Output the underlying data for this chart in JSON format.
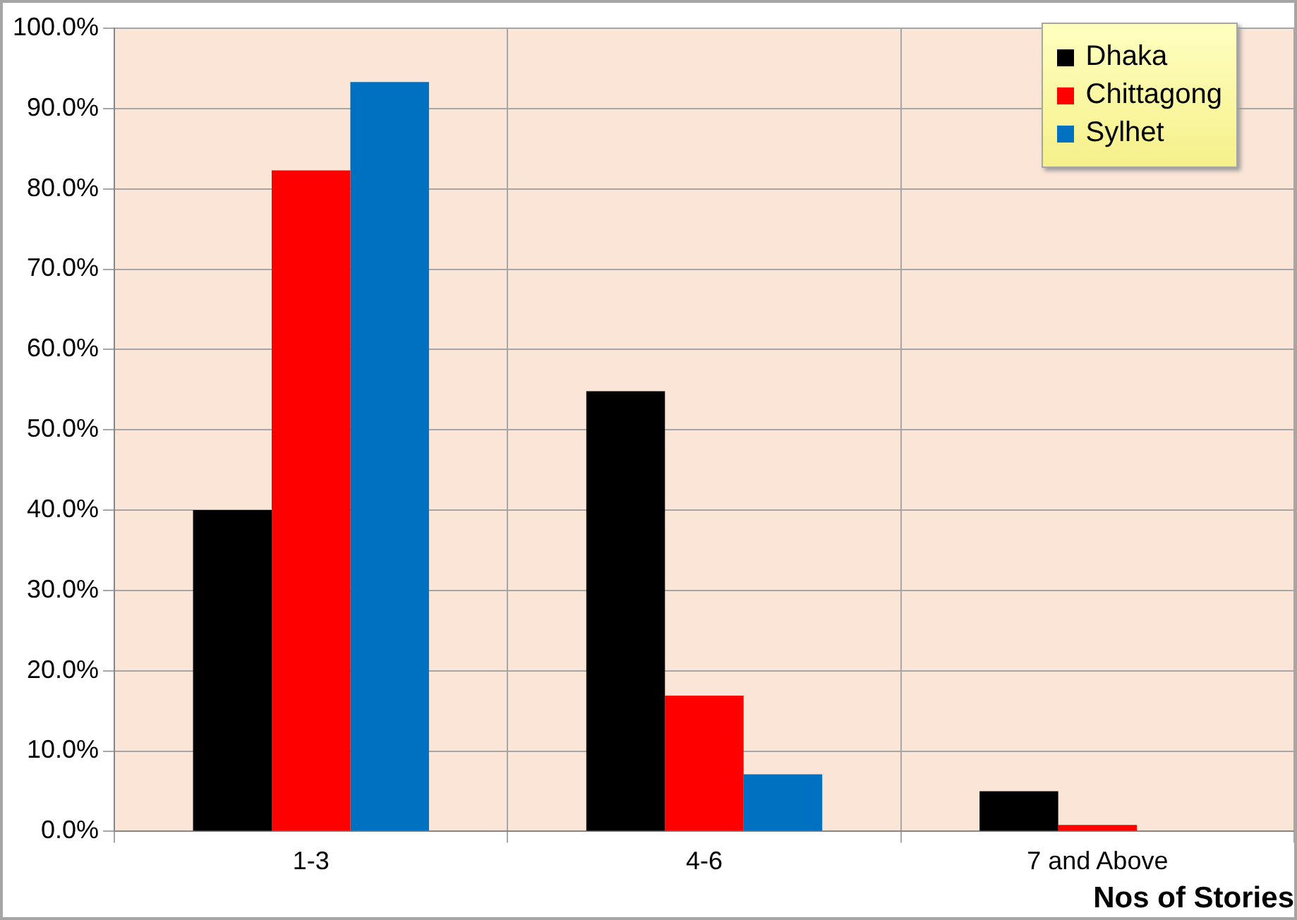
{
  "chart_data": {
    "type": "bar",
    "xlabel": "Nos of Stories",
    "categories": [
      "1-3",
      "4-6",
      "7 and Above"
    ],
    "series": [
      {
        "name": "Dhaka",
        "color": "#000000",
        "values": [
          40.0,
          54.8,
          5.0
        ]
      },
      {
        "name": "Chittagong",
        "color": "#ff0000",
        "values": [
          82.3,
          16.9,
          0.8
        ]
      },
      {
        "name": "Sylhet",
        "color": "#0070c0",
        "values": [
          93.3,
          7.1,
          0
        ]
      }
    ],
    "ylim": [
      0,
      100
    ],
    "yticks": [
      {
        "value": 0,
        "label": "0.0%"
      },
      {
        "value": 10,
        "label": "10.0%"
      },
      {
        "value": 20,
        "label": "20.0%"
      },
      {
        "value": 30,
        "label": "30.0%"
      },
      {
        "value": 40,
        "label": "40.0%"
      },
      {
        "value": 50,
        "label": "50.0%"
      },
      {
        "value": 60,
        "label": "60.0%"
      },
      {
        "value": 70,
        "label": "70.0%"
      },
      {
        "value": 80,
        "label": "80.0%"
      },
      {
        "value": 90,
        "label": "90.0%"
      },
      {
        "value": 100,
        "label": "100.0%"
      }
    ],
    "grid": true,
    "legend": "top right"
  }
}
